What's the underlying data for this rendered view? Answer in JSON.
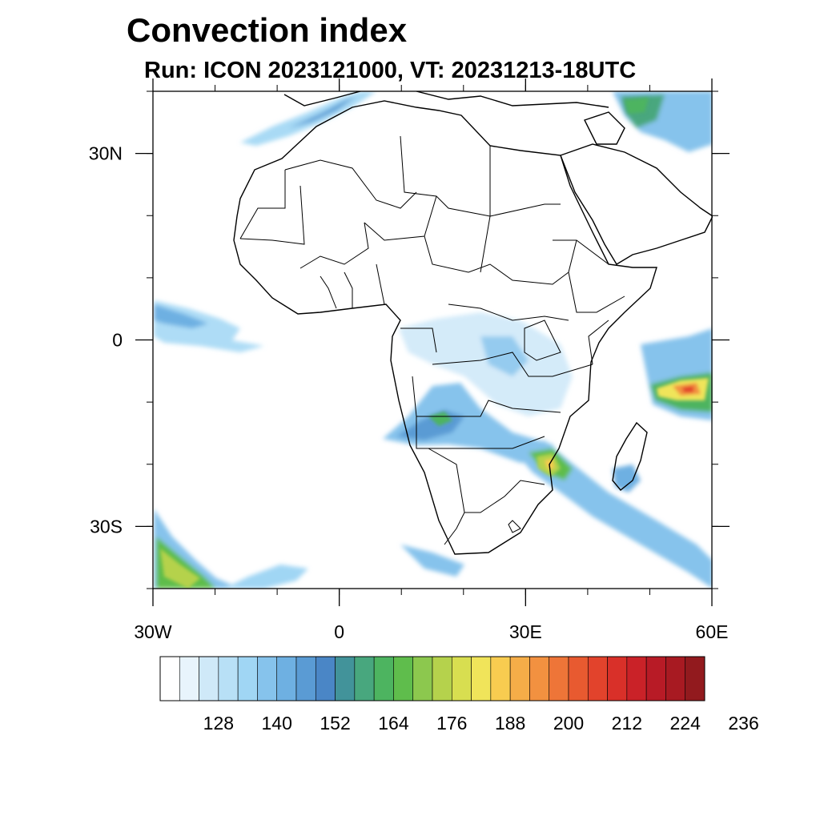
{
  "title": "Convection index",
  "subtitle": "Run: ICON 2023121000,  VT: 20231213-18UTC",
  "map": {
    "extent": {
      "lon_min": -30,
      "lon_max": 60,
      "lat_min": -40,
      "lat_max": 40
    },
    "lat_ticks": [
      {
        "value": 30,
        "label": "30N"
      },
      {
        "value": 0,
        "label": "0"
      },
      {
        "value": -30,
        "label": "30S"
      }
    ],
    "lon_ticks": [
      {
        "value": -30,
        "label": "30W"
      },
      {
        "value": 0,
        "label": "0"
      },
      {
        "value": 30,
        "label": "30E"
      },
      {
        "value": 60,
        "label": "60E"
      }
    ]
  },
  "colorbar": {
    "colors": [
      "#ffffff",
      "#e8f4fc",
      "#cfe9f8",
      "#b8e0f6",
      "#a0d6f4",
      "#86c3ec",
      "#6eb0e2",
      "#5a9bd4",
      "#4a86c6",
      "#42939a",
      "#48a77e",
      "#4db460",
      "#5fbd4c",
      "#8cc84e",
      "#b5d24c",
      "#d8de50",
      "#f0e45a",
      "#f8cc50",
      "#f5ad48",
      "#f29140",
      "#ee7538",
      "#e85a30",
      "#e2432c",
      "#d93029",
      "#ca2228",
      "#b81b26",
      "#a81a22",
      "#921a1e"
    ],
    "tick_labels": [
      "128",
      "140",
      "152",
      "164",
      "176",
      "188",
      "200",
      "212",
      "224",
      "236"
    ],
    "tick_values": [
      128,
      140,
      152,
      164,
      176,
      188,
      200,
      212,
      224,
      236
    ]
  }
}
